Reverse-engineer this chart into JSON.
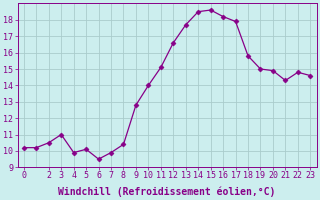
{
  "x": [
    0,
    1,
    2,
    3,
    4,
    5,
    6,
    7,
    8,
    9,
    10,
    11,
    12,
    13,
    14,
    15,
    16,
    17,
    18,
    19,
    20,
    21,
    22,
    23
  ],
  "y": [
    10.2,
    10.2,
    10.5,
    11.0,
    9.9,
    10.1,
    9.5,
    9.9,
    10.4,
    12.8,
    14.0,
    15.1,
    16.6,
    17.7,
    18.5,
    18.6,
    18.2,
    17.9,
    15.8,
    15.0,
    14.9,
    14.3,
    14.8,
    14.6
  ],
  "line_color": "#880088",
  "marker": "D",
  "marker_size": 2.5,
  "bg_color": "#cceeee",
  "grid_color": "#aacccc",
  "xlabel": "Windchill (Refroidissement éolien,°C)",
  "xlim_min": -0.5,
  "xlim_max": 23.5,
  "ylim_min": 9,
  "ylim_max": 19,
  "yticks": [
    9,
    10,
    11,
    12,
    13,
    14,
    15,
    16,
    17,
    18
  ],
  "xticks": [
    0,
    2,
    3,
    4,
    5,
    6,
    7,
    8,
    9,
    10,
    11,
    12,
    13,
    14,
    15,
    16,
    17,
    18,
    19,
    20,
    21,
    22,
    23
  ],
  "tick_color": "#880088",
  "label_color": "#880088",
  "font_size": 6,
  "xlabel_fontsize": 7
}
